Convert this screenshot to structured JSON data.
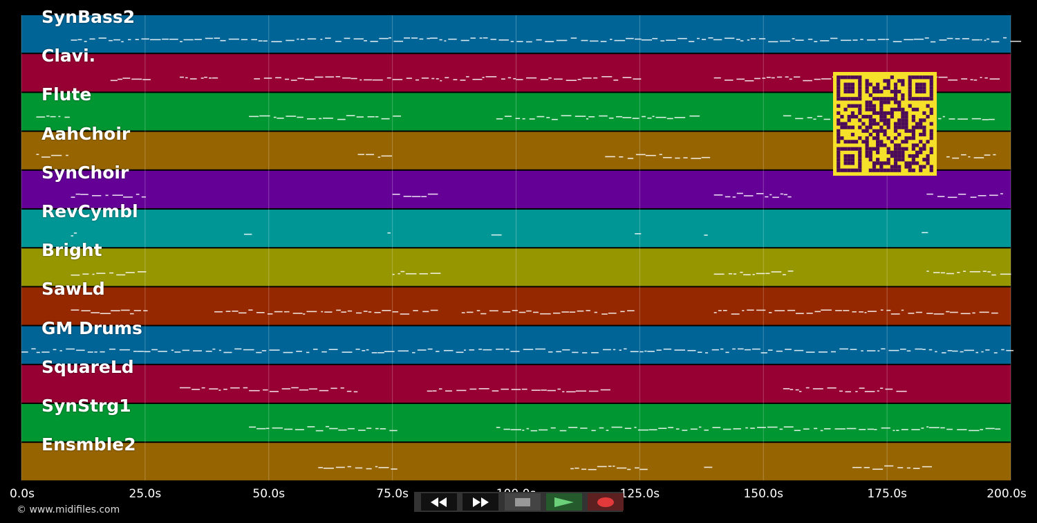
{
  "tracks": [
    {
      "name": "SynBass2",
      "color": "#006496"
    },
    {
      "name": "Clavi.",
      "color": "#960032"
    },
    {
      "name": "Flute",
      "color": "#009632"
    },
    {
      "name": "AahChoir",
      "color": "#966400"
    },
    {
      "name": "SynChoir",
      "color": "#640096"
    },
    {
      "name": "RevCymbl",
      "color": "#009696"
    },
    {
      "name": "Bright",
      "color": "#969600"
    },
    {
      "name": "SawLd",
      "color": "#962800"
    },
    {
      "name": "GM Drums",
      "color": "#006496"
    },
    {
      "name": "SquareLd",
      "color": "#960032"
    },
    {
      "name": "SynStrg1",
      "color": "#009632"
    },
    {
      "name": "Ensmble2",
      "color": "#966400"
    }
  ],
  "timeline": {
    "ticks": [
      "0.0s",
      "25.0s",
      "50.0s",
      "75.0s",
      "100.0s",
      "125.0s",
      "150.0s",
      "175.0s",
      "200.0s"
    ],
    "max_seconds": 200
  },
  "footer": {
    "copyright": "© www.midifiles.com"
  },
  "transport": {
    "buttons": [
      {
        "name": "rewind-button",
        "icon": "rewind-icon"
      },
      {
        "name": "fast-forward-button",
        "icon": "fast-forward-icon"
      },
      {
        "name": "stop-button",
        "icon": "stop-icon"
      },
      {
        "name": "play-button",
        "icon": "play-icon"
      },
      {
        "name": "record-button",
        "icon": "record-icon"
      }
    ]
  },
  "colors": {
    "qr_fg": "#4b0b58",
    "qr_bg": "#f5e02a",
    "grid": "#ffffff",
    "background": "#000000"
  }
}
